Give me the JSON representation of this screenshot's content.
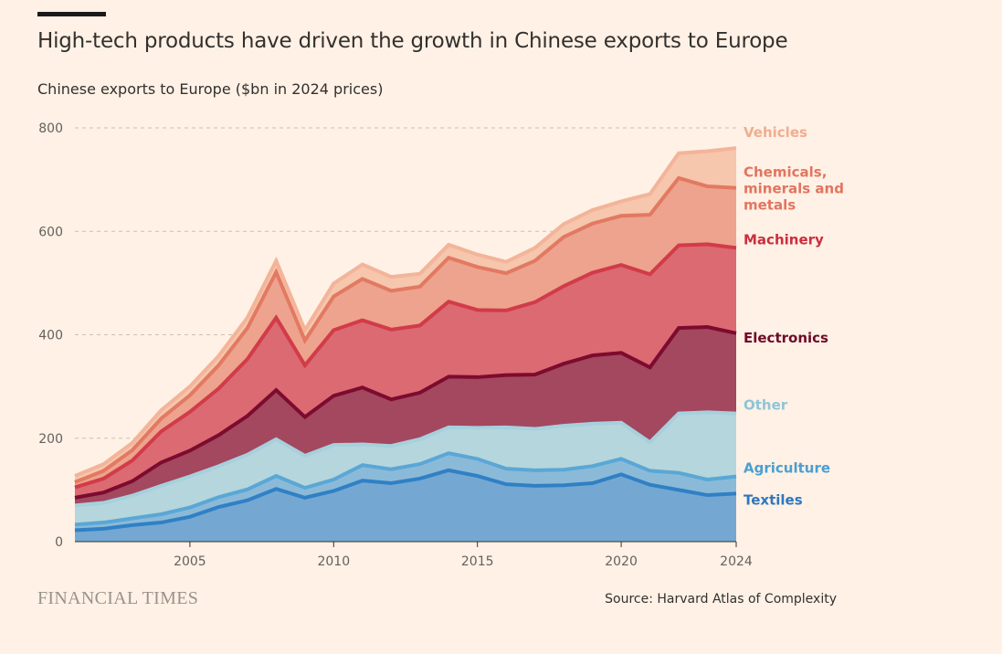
{
  "title": "High-tech products have driven the growth in Chinese exports to Europe",
  "subtitle": "Chinese exports to Europe ($bn in 2024 prices)",
  "brand": "FINANCIAL TIMES",
  "source": "Source: Harvard Atlas of Complexity",
  "chart_data": {
    "type": "area",
    "stacked": true,
    "x": [
      2001,
      2002,
      2003,
      2004,
      2005,
      2006,
      2007,
      2008,
      2009,
      2010,
      2011,
      2012,
      2013,
      2014,
      2015,
      2016,
      2017,
      2018,
      2019,
      2020,
      2021,
      2022,
      2023,
      2024
    ],
    "xticks": [
      "2005",
      "2010",
      "2015",
      "2020",
      "2024"
    ],
    "xlim": [
      2001,
      2024
    ],
    "yticks": [
      "0",
      "200",
      "400",
      "600",
      "800"
    ],
    "ylim": [
      0,
      800
    ],
    "grid": true,
    "xlabel": "",
    "ylabel": "Chinese exports to Europe ($bn in 2024 prices)",
    "series": [
      {
        "name": "Textiles",
        "label_lines": [
          "Textiles"
        ],
        "color": "#74a8d2",
        "line_color": "#3080c5",
        "label_color": "#2f77bd",
        "values": [
          22,
          25,
          32,
          37,
          48,
          67,
          80,
          102,
          85,
          98,
          118,
          113,
          122,
          138,
          127,
          111,
          108,
          109,
          113,
          130,
          110,
          100,
          90,
          93
        ]
      },
      {
        "name": "Agriculture",
        "label_lines": [
          "Agriculture"
        ],
        "color": "#8bbad9",
        "line_color": "#5aa7d6",
        "label_color": "#4a9fd2",
        "values": [
          11,
          12,
          13,
          16,
          18,
          19,
          21,
          25,
          19,
          22,
          30,
          27,
          28,
          33,
          33,
          30,
          30,
          30,
          33,
          30,
          27,
          33,
          30,
          33
        ]
      },
      {
        "name": "Other",
        "label_lines": [
          "Other"
        ],
        "color": "#b5d6dc",
        "line_color": "#a7d0dd",
        "label_color": "#8fc4d9",
        "values": [
          37,
          38,
          44,
          55,
          60,
          60,
          67,
          71,
          62,
          67,
          40,
          45,
          48,
          50,
          60,
          80,
          80,
          85,
          82,
          70,
          55,
          115,
          130,
          122
        ]
      },
      {
        "name": "Electronics",
        "label_lines": [
          "Electronics"
        ],
        "color": "#a3485f",
        "line_color": "#7d0b2f",
        "label_color": "#6e0a2a",
        "values": [
          15,
          20,
          28,
          45,
          50,
          60,
          75,
          95,
          75,
          95,
          110,
          90,
          90,
          98,
          98,
          101,
          105,
          120,
          132,
          135,
          145,
          165,
          165,
          155
        ]
      },
      {
        "name": "Machinery",
        "label_lines": [
          "Machinery"
        ],
        "color": "#db6a72",
        "line_color": "#d23b48",
        "label_color": "#cc2e3e",
        "values": [
          20,
          27,
          40,
          60,
          75,
          90,
          110,
          140,
          100,
          127,
          130,
          135,
          130,
          145,
          130,
          125,
          140,
          150,
          160,
          170,
          180,
          160,
          160,
          165
        ]
      },
      {
        "name": "Chemicals, minerals and metals",
        "label_lines": [
          "Chemicals,",
          "minerals and",
          "metals"
        ],
        "color": "#eda38d",
        "line_color": "#e27962",
        "label_color": "#e27560",
        "values": [
          10,
          15,
          20,
          25,
          32,
          45,
          60,
          88,
          48,
          65,
          80,
          75,
          75,
          85,
          83,
          72,
          80,
          95,
          95,
          95,
          115,
          130,
          112,
          116
        ]
      },
      {
        "name": "Vehicles",
        "label_lines": [
          "Vehicles"
        ],
        "color": "#f6c6ad",
        "line_color": "#f3b49a",
        "label_color": "#f0ad90",
        "values": [
          12,
          13,
          14,
          16,
          17,
          18,
          20,
          22,
          20,
          25,
          28,
          27,
          25,
          25,
          24,
          22,
          25,
          25,
          26,
          28,
          40,
          48,
          68,
          77
        ]
      }
    ]
  }
}
